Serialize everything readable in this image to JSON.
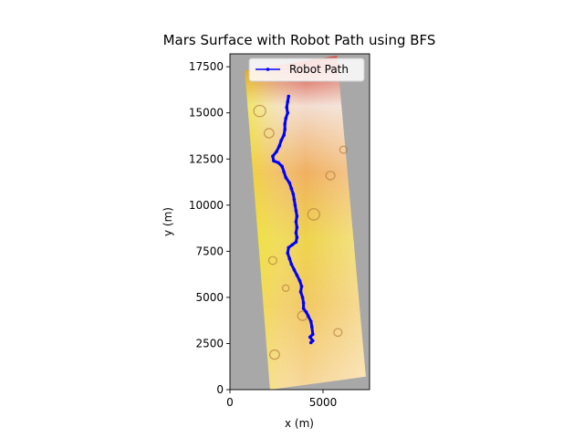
{
  "chart_data": {
    "type": "line",
    "title": "Mars Surface with Robot Path using BFS",
    "xlabel": "x (m)",
    "ylabel": "y (m)",
    "xlim": [
      0,
      7500
    ],
    "ylim": [
      0,
      18200
    ],
    "xticks": [
      0,
      5000
    ],
    "xtick_labels": [
      "0",
      "5000"
    ],
    "yticks": [
      0,
      2500,
      5000,
      7500,
      10000,
      12500,
      15000,
      17500
    ],
    "ytick_labels": [
      "0",
      "2500",
      "5000",
      "7500",
      "10000",
      "12500",
      "15000",
      "17500"
    ],
    "grid": false,
    "legend_position": "top-right",
    "background": {
      "type": "image",
      "description_colors": {
        "nodata": "#a8a8a8",
        "low": "#f0f000",
        "mid": "#f0a050",
        "high": "#c01010"
      },
      "footprint_corners_data": [
        [
          2150,
          0
        ],
        [
          7300,
          700
        ],
        [
          5750,
          18100
        ],
        [
          800,
          17300
        ]
      ]
    },
    "series": [
      {
        "name": "Robot Path",
        "color": "#0000ff",
        "marker": ".",
        "points": [
          [
            4350,
            2550
          ],
          [
            4450,
            2650
          ],
          [
            4300,
            2850
          ],
          [
            4450,
            3000
          ],
          [
            4400,
            3400
          ],
          [
            4350,
            3700
          ],
          [
            4200,
            4000
          ],
          [
            4100,
            4200
          ],
          [
            3950,
            4400
          ],
          [
            3950,
            4700
          ],
          [
            3900,
            5000
          ],
          [
            3800,
            5300
          ],
          [
            3850,
            5600
          ],
          [
            3750,
            5900
          ],
          [
            3600,
            6200
          ],
          [
            3450,
            6500
          ],
          [
            3300,
            6800
          ],
          [
            3200,
            7100
          ],
          [
            3100,
            7400
          ],
          [
            3150,
            7700
          ],
          [
            3350,
            7850
          ],
          [
            3550,
            8000
          ],
          [
            3600,
            8250
          ],
          [
            3550,
            8500
          ],
          [
            3600,
            8800
          ],
          [
            3550,
            9100
          ],
          [
            3600,
            9400
          ],
          [
            3550,
            9700
          ],
          [
            3500,
            10000
          ],
          [
            3450,
            10300
          ],
          [
            3400,
            10600
          ],
          [
            3300,
            10900
          ],
          [
            3200,
            11200
          ],
          [
            3000,
            11500
          ],
          [
            2900,
            11800
          ],
          [
            2800,
            12100
          ],
          [
            2600,
            12300
          ],
          [
            2350,
            12400
          ],
          [
            2300,
            12650
          ],
          [
            2500,
            12900
          ],
          [
            2650,
            13200
          ],
          [
            2750,
            13500
          ],
          [
            2900,
            13800
          ],
          [
            2950,
            14100
          ],
          [
            2950,
            14400
          ],
          [
            3000,
            14700
          ],
          [
            3100,
            15000
          ],
          [
            3050,
            15300
          ],
          [
            3100,
            15600
          ],
          [
            3150,
            15900
          ]
        ]
      }
    ]
  },
  "legend": {
    "label": "Robot Path"
  }
}
